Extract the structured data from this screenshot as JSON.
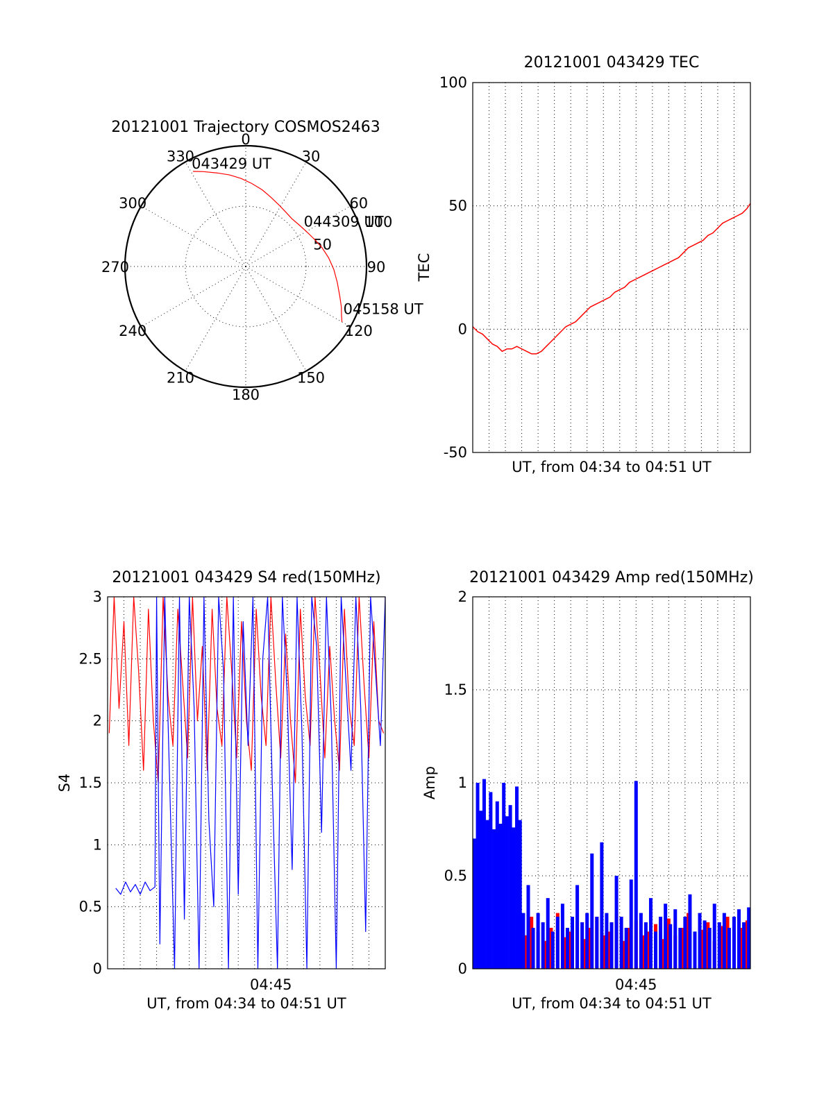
{
  "chart_data": [
    {
      "type": "polar",
      "title": "20121001 Trajectory COSMOS2463",
      "angle_labels": [
        "0",
        "30",
        "60",
        "90",
        "120",
        "150",
        "180",
        "210",
        "240",
        "270",
        "300",
        "330"
      ],
      "radial_ticks": [
        {
          "value": 50,
          "label": "50"
        },
        {
          "value": 100,
          "label": "100"
        }
      ],
      "radial_range": [
        0,
        100
      ],
      "grid": true,
      "series": [
        {
          "color": "#ff0000",
          "azimuth": [
            331,
            336,
            343,
            350,
            357,
            4,
            12,
            20,
            28,
            36,
            44,
            52,
            60,
            68,
            76,
            84,
            92,
            100,
            108,
            113,
            117,
            120
          ],
          "radius": [
            90,
            86,
            81,
            77,
            73,
            69,
            65,
            61,
            58,
            56,
            55,
            56,
            58,
            61,
            65,
            69,
            73,
            77,
            82,
            86,
            89,
            92
          ]
        }
      ],
      "annotations": [
        {
          "text": "043429 UT",
          "azimuth": 331,
          "radius": 90
        },
        {
          "text": "044309 UT",
          "azimuth": 58,
          "radius": 58
        },
        {
          "text": "045158 UT",
          "azimuth": 117,
          "radius": 92
        }
      ]
    },
    {
      "type": "line",
      "title": "20121001 043429 TEC",
      "xlabel": "UT, from 04:34 to 04:51 UT",
      "ylabel": "TEC",
      "ylim": [
        -50,
        100
      ],
      "yticks": [
        {
          "value": -50,
          "label": "-50"
        },
        {
          "value": 0,
          "label": "0"
        },
        {
          "value": 50,
          "label": "50"
        },
        {
          "value": 100,
          "label": "100"
        }
      ],
      "xlim": [
        0,
        17
      ],
      "xgrid_interval": 1,
      "grid": true,
      "series": [
        {
          "color": "#ff0000",
          "x": [
            0,
            0.3,
            0.6,
            0.9,
            1.2,
            1.5,
            1.8,
            2.1,
            2.4,
            2.7,
            3.0,
            3.3,
            3.6,
            3.9,
            4.2,
            4.5,
            4.8,
            5.1,
            5.4,
            5.7,
            6.0,
            6.3,
            6.6,
            6.9,
            7.2,
            7.5,
            7.8,
            8.1,
            8.4,
            8.7,
            9.0,
            9.3,
            9.6,
            9.9,
            10.2,
            10.5,
            10.8,
            11.1,
            11.4,
            11.7,
            12.0,
            12.3,
            12.6,
            12.9,
            13.2,
            13.5,
            13.8,
            14.1,
            14.4,
            14.7,
            15.0,
            15.3,
            15.6,
            15.9,
            16.2,
            16.5,
            16.8,
            17.0
          ],
          "y": [
            1,
            -1,
            -2,
            -4,
            -6,
            -7,
            -9,
            -8,
            -8,
            -7,
            -8,
            -9,
            -10,
            -10,
            -9,
            -7,
            -5,
            -3,
            -1,
            1,
            2,
            3,
            5,
            7,
            9,
            10,
            11,
            12,
            13,
            15,
            16,
            17,
            19,
            20,
            21,
            22,
            23,
            24,
            25,
            26,
            27,
            28,
            29,
            31,
            33,
            34,
            35,
            36,
            38,
            39,
            41,
            43,
            44,
            45,
            46,
            47,
            49,
            51
          ]
        }
      ]
    },
    {
      "type": "line",
      "title": "20121001 043429 S4 red(150MHz)",
      "xlabel": "UT, from 04:34 to 04:51 UT",
      "ylabel": "S4",
      "ylim": [
        0,
        3
      ],
      "yticks": [
        {
          "value": 0,
          "label": "0"
        },
        {
          "value": 0.5,
          "label": "0.5"
        },
        {
          "value": 1,
          "label": "1"
        },
        {
          "value": 1.5,
          "label": "1.5"
        },
        {
          "value": 2,
          "label": "2"
        },
        {
          "value": 2.5,
          "label": "2.5"
        },
        {
          "value": 3,
          "label": "3"
        }
      ],
      "xlim": [
        0,
        17
      ],
      "xticks": [
        {
          "value": 10,
          "label": "04:45"
        }
      ],
      "xgrid_interval": 1,
      "grid": true,
      "series": [
        {
          "color": "#ff0000",
          "x": [
            0.1,
            0.4,
            0.7,
            1.0,
            1.3,
            1.6,
            1.9,
            2.2,
            2.5,
            2.8,
            3.1,
            3.4,
            3.7,
            4.0,
            4.3,
            4.6,
            4.9,
            5.2,
            5.5,
            5.8,
            6.1,
            6.4,
            6.7,
            7.0,
            7.3,
            7.6,
            7.9,
            8.2,
            8.5,
            8.8,
            9.1,
            9.4,
            9.7,
            10.0,
            10.3,
            10.6,
            10.9,
            11.2,
            11.5,
            11.8,
            12.1,
            12.4,
            12.7,
            13.0,
            13.3,
            13.6,
            13.9,
            14.2,
            14.5,
            14.8,
            15.1,
            15.4,
            15.7,
            16.0,
            16.3,
            16.6,
            16.9
          ],
          "y": [
            1.9,
            3.0,
            2.1,
            2.8,
            1.8,
            3.0,
            2.4,
            1.6,
            2.9,
            2.0,
            1.5,
            3.0,
            2.2,
            1.8,
            2.9,
            2.3,
            1.7,
            3.0,
            2.0,
            2.6,
            1.6,
            2.9,
            2.1,
            1.8,
            3.0,
            2.4,
            1.7,
            2.8,
            2.0,
            1.6,
            2.9,
            2.2,
            1.8,
            3.0,
            2.3,
            1.7,
            2.7,
            2.0,
            1.5,
            2.9,
            2.2,
            1.8,
            3.0,
            2.4,
            1.7,
            2.6,
            2.0,
            1.6,
            2.9,
            2.1,
            1.8,
            3.0,
            2.3,
            1.7,
            2.8,
            2.0,
            1.9
          ]
        },
        {
          "color": "#0000ff",
          "x": [
            0.5,
            0.8,
            1.1,
            1.4,
            1.7,
            2.0,
            2.3,
            2.6,
            2.9,
            3.0,
            3.2,
            3.5,
            3.8,
            4.1,
            4.4,
            4.7,
            5.0,
            5.3,
            5.6,
            5.9,
            6.2,
            6.5,
            6.8,
            7.1,
            7.4,
            7.7,
            8.0,
            8.3,
            8.6,
            8.9,
            9.2,
            9.5,
            9.8,
            10.1,
            10.4,
            10.7,
            11.0,
            11.3,
            11.6,
            11.9,
            12.2,
            12.5,
            12.8,
            13.1,
            13.4,
            13.7,
            14.0,
            14.3,
            14.6,
            14.9,
            15.2,
            15.5,
            15.8,
            16.1,
            16.4,
            16.7,
            17.0
          ],
          "y": [
            0.65,
            0.6,
            0.7,
            0.62,
            0.68,
            0.6,
            0.7,
            0.63,
            0.66,
            3.0,
            0.2,
            3.0,
            1.5,
            0.0,
            3.0,
            0.4,
            3.0,
            2.1,
            0.0,
            3.0,
            1.2,
            0.5,
            3.0,
            2.4,
            0.0,
            3.0,
            0.6,
            2.8,
            1.8,
            3.0,
            0.0,
            2.5,
            3.0,
            1.4,
            0.0,
            3.0,
            2.2,
            0.8,
            3.0,
            1.9,
            0.0,
            3.0,
            2.6,
            1.1,
            3.0,
            2.0,
            0.0,
            3.0,
            2.3,
            1.6,
            3.0,
            2.1,
            0.3,
            3.0,
            2.4,
            1.8,
            3.0
          ]
        }
      ]
    },
    {
      "type": "line",
      "title": "20121001 043429 Amp red(150MHz)",
      "xlabel": "UT, from 04:34 to 04:51 UT",
      "ylabel": "Amp",
      "ylim": [
        0,
        2
      ],
      "yticks": [
        {
          "value": 0,
          "label": "0"
        },
        {
          "value": 0.5,
          "label": "0.5"
        },
        {
          "value": 1,
          "label": "1"
        },
        {
          "value": 1.5,
          "label": "1.5"
        },
        {
          "value": 2,
          "label": "2"
        }
      ],
      "xlim": [
        0,
        17
      ],
      "xticks": [
        {
          "value": 10,
          "label": "04:45"
        }
      ],
      "xgrid_interval": 1,
      "grid": true,
      "series": [
        {
          "color": "#ff0000",
          "x": [
            2.8,
            3.2,
            3.6,
            4.0,
            4.4,
            4.8,
            5.2,
            5.6,
            6.0,
            6.4,
            6.8,
            7.2,
            7.6,
            8.0,
            8.4,
            8.8,
            9.2,
            9.6,
            10.0,
            10.4,
            10.8,
            11.2,
            11.6,
            12.0,
            12.4,
            12.8,
            13.2,
            13.6,
            14.0,
            14.4,
            14.8,
            15.2,
            15.6,
            16.0,
            16.4,
            16.8
          ],
          "y": [
            0.25,
            0.18,
            0.28,
            0.2,
            0.15,
            0.22,
            0.3,
            0.17,
            0.2,
            0.25,
            0.16,
            0.22,
            0.28,
            0.18,
            0.2,
            0.3,
            0.15,
            0.22,
            0.26,
            0.18,
            0.2,
            0.24,
            0.16,
            0.27,
            0.18,
            0.22,
            0.3,
            0.17,
            0.21,
            0.25,
            0.15,
            0.23,
            0.28,
            0.19,
            0.22,
            0.26
          ]
        },
        {
          "color": "#0000ff",
          "x": [
            0.1,
            0.3,
            0.5,
            0.7,
            0.9,
            1.1,
            1.3,
            1.5,
            1.7,
            1.9,
            2.1,
            2.3,
            2.5,
            2.7,
            2.9,
            3.1,
            3.4,
            3.7,
            4.0,
            4.3,
            4.6,
            4.9,
            5.2,
            5.5,
            5.8,
            6.1,
            6.4,
            6.7,
            7.0,
            7.3,
            7.6,
            7.9,
            8.2,
            8.5,
            8.8,
            9.1,
            9.4,
            9.7,
            10.0,
            10.3,
            10.6,
            10.9,
            11.2,
            11.5,
            11.8,
            12.1,
            12.4,
            12.7,
            13.0,
            13.3,
            13.6,
            13.9,
            14.2,
            14.5,
            14.8,
            15.1,
            15.4,
            15.7,
            16.0,
            16.3,
            16.6,
            16.9
          ],
          "y": [
            0.7,
            1.0,
            0.85,
            1.02,
            0.8,
            0.95,
            0.75,
            0.9,
            0.78,
            1.0,
            0.82,
            0.88,
            0.76,
            0.98,
            0.8,
            0.3,
            0.45,
            0.22,
            0.3,
            0.25,
            0.38,
            0.2,
            0.28,
            0.35,
            0.22,
            0.28,
            0.45,
            0.25,
            0.3,
            0.62,
            0.28,
            0.68,
            0.3,
            0.25,
            0.5,
            0.28,
            0.22,
            0.48,
            1.01,
            0.3,
            0.25,
            0.38,
            0.2,
            0.28,
            0.35,
            0.24,
            0.32,
            0.22,
            0.28,
            0.4,
            0.2,
            0.3,
            0.26,
            0.22,
            0.35,
            0.25,
            0.3,
            0.22,
            0.28,
            0.32,
            0.25,
            0.33
          ]
        }
      ]
    }
  ]
}
